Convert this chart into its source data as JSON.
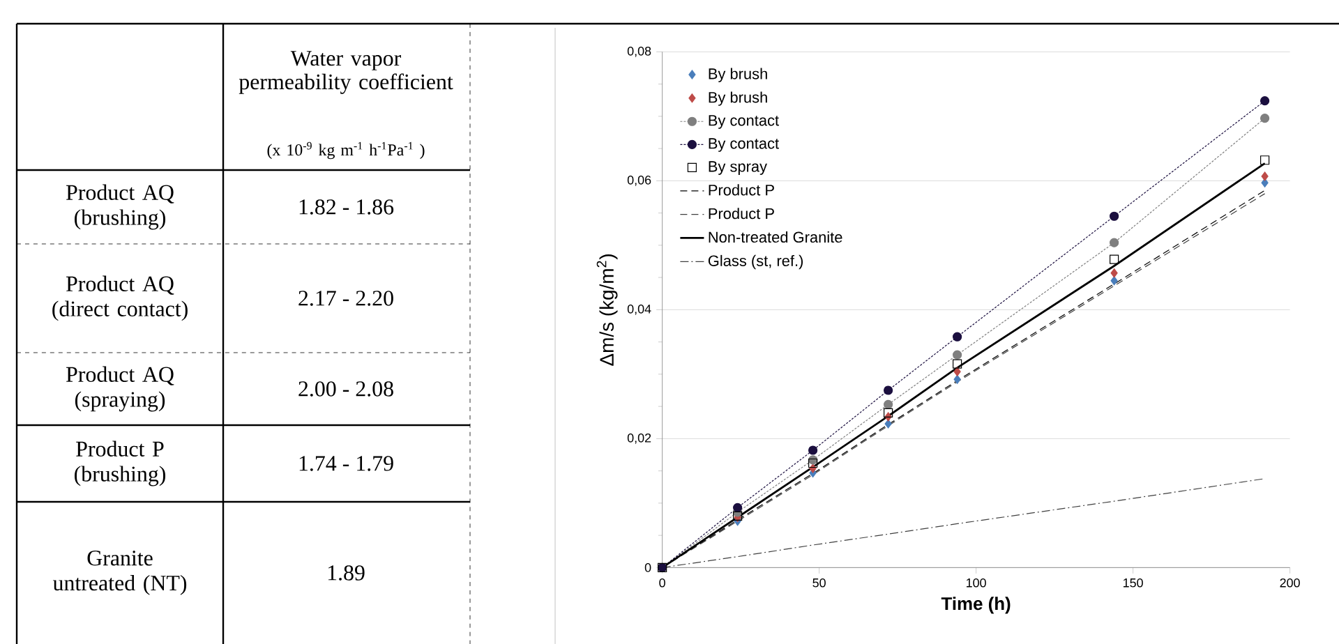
{
  "chart_data": [
    {
      "type": "other",
      "title": "Water vapor permeability coefficient",
      "subtitle": "(x 10$^{-9}$ kg m$^{-1}$ h$^{-1}$Pa$^{-1}$ )",
      "categories": [
        "Product AQ (brushing)",
        "Product AQ (direct contact)",
        "Product AQ (spraying)",
        "Product P (brushing)",
        "Granite untreated (NT)"
      ],
      "value_labels": [
        "1.82 - 1.86",
        "2.17 - 2.20",
        "2.00 - 2.08",
        "1.74 - 1.79",
        "1.89"
      ]
    },
    {
      "type": "line",
      "xlabel": "Time (h)",
      "ylabel": "Δm/s   (kg/m$^{2}$)",
      "x": [
        0,
        24,
        48,
        72,
        94,
        144,
        192
      ],
      "xlim": [
        0,
        200
      ],
      "xticks": [
        0,
        50,
        100,
        150,
        200
      ],
      "ylim": [
        0,
        0.08
      ],
      "yticks": [
        {
          "value": 0,
          "label": "0"
        },
        {
          "value": 0.02,
          "label": "0,02"
        },
        {
          "value": 0.04,
          "label": "0,04"
        },
        {
          "value": 0.06,
          "label": "0,06"
        },
        {
          "value": 0.08,
          "label": "0,08"
        }
      ],
      "grid": "y",
      "legend": "top left",
      "series": [
        {
          "name": "By brush",
          "type": "scatter",
          "marker": "diamond",
          "color": "#4a7ebb",
          "values": [
            null,
            0.0072,
            0.0147,
            0.0223,
            0.0292,
            0.0445,
            0.0597
          ]
        },
        {
          "name": "By brush",
          "type": "scatter",
          "marker": "diamond",
          "color": "#be4b48",
          "values": [
            null,
            0.0078,
            0.0154,
            0.0234,
            0.0304,
            0.0457,
            0.0607
          ]
        },
        {
          "name": "By contact",
          "type": "line",
          "marker": "circle",
          "line_style": "dotted",
          "color": "#7f7f7f",
          "values": [
            0,
            0.0086,
            0.0167,
            0.0253,
            0.033,
            0.0504,
            0.0697
          ]
        },
        {
          "name": "By contact",
          "type": "line",
          "marker": "circle",
          "line_style": "dotted",
          "color": "#1b0f3f",
          "values": [
            0,
            0.0093,
            0.0182,
            0.0275,
            0.0358,
            0.0545,
            0.0724
          ]
        },
        {
          "name": "By spray",
          "type": "scatter",
          "marker": "square",
          "color": "#000000",
          "values": [
            0,
            0.008,
            0.0162,
            0.024,
            0.0316,
            0.0478,
            0.0632
          ]
        },
        {
          "name": "Product P",
          "type": "line",
          "marker": "none",
          "line_style": "dashed",
          "color": "#000000",
          "values": [
            0,
            0.0074,
            0.0146,
            0.0222,
            0.029,
            0.044,
            0.0585
          ]
        },
        {
          "name": "Product P",
          "type": "line",
          "marker": "none",
          "line_style": "dashed",
          "color": "#404040",
          "values": [
            0,
            0.0072,
            0.0144,
            0.022,
            0.0288,
            0.0437,
            0.058
          ]
        },
        {
          "name": "Non-treated Granite",
          "type": "line",
          "marker": "none",
          "line_style": "solid",
          "color": "#000000",
          "values": [
            0,
            0.0078,
            0.0156,
            0.0235,
            0.031,
            0.0468,
            0.0627
          ]
        },
        {
          "name": "Glass (st, ref.)",
          "type": "line",
          "marker": "none",
          "line_style": "dashdotted",
          "color": "#404040",
          "values": [
            0,
            0.0017,
            0.0035,
            0.0052,
            0.0068,
            0.0103,
            0.0138
          ]
        }
      ]
    }
  ]
}
